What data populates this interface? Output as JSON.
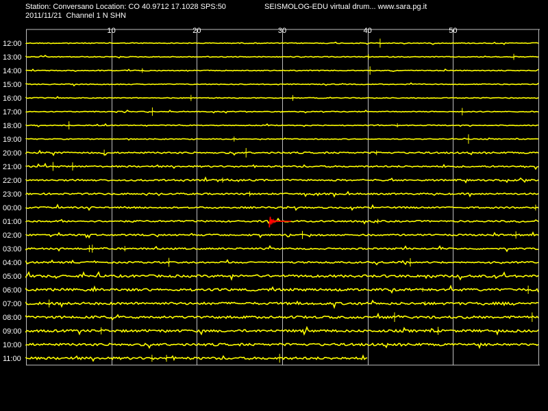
{
  "header": {
    "station_line": "Station: Conversano Location: CO 40.9712 17.1028 SPS:50",
    "software_line": "SEISMOLOG-EDU virtual drum... www.sara.pg.it",
    "date_line": "2011/11/21  Channel 1 N SHN"
  },
  "colors": {
    "background": "#000000",
    "trace": "#ffff00",
    "event": "#ff0000",
    "grid": "#c0c0c0",
    "text": "#ffffff"
  },
  "chart_data": {
    "type": "line",
    "title": "",
    "xlabel": "",
    "ylabel": "",
    "x_ticks": [
      10,
      20,
      30,
      40,
      50
    ],
    "xlim": [
      0,
      60
    ],
    "x_unit": "minute",
    "grid": true,
    "rows": [
      {
        "label": "12:00",
        "end_minute": 60,
        "amplitude": "low"
      },
      {
        "label": "13:00",
        "end_minute": 60,
        "amplitude": "low"
      },
      {
        "label": "14:00",
        "end_minute": 60,
        "amplitude": "low"
      },
      {
        "label": "15:00",
        "end_minute": 60,
        "amplitude": "low"
      },
      {
        "label": "16:00",
        "end_minute": 60,
        "amplitude": "low"
      },
      {
        "label": "17:00",
        "end_minute": 60,
        "amplitude": "low"
      },
      {
        "label": "18:00",
        "end_minute": 60,
        "amplitude": "low"
      },
      {
        "label": "19:00",
        "end_minute": 60,
        "amplitude": "low"
      },
      {
        "label": "20:00",
        "end_minute": 60,
        "amplitude": "medium"
      },
      {
        "label": "21:00",
        "end_minute": 60,
        "amplitude": "medium"
      },
      {
        "label": "22:00",
        "end_minute": 60,
        "amplitude": "medium"
      },
      {
        "label": "23:00",
        "end_minute": 60,
        "amplitude": "medium"
      },
      {
        "label": "00:00",
        "end_minute": 60,
        "amplitude": "medium"
      },
      {
        "label": "01:00",
        "end_minute": 60,
        "amplitude": "medium"
      },
      {
        "label": "02:00",
        "end_minute": 60,
        "amplitude": "medium"
      },
      {
        "label": "03:00",
        "end_minute": 60,
        "amplitude": "medium"
      },
      {
        "label": "04:00",
        "end_minute": 60,
        "amplitude": "medium"
      },
      {
        "label": "05:00",
        "end_minute": 60,
        "amplitude": "high"
      },
      {
        "label": "06:00",
        "end_minute": 60,
        "amplitude": "high"
      },
      {
        "label": "07:00",
        "end_minute": 60,
        "amplitude": "high"
      },
      {
        "label": "08:00",
        "end_minute": 60,
        "amplitude": "high"
      },
      {
        "label": "09:00",
        "end_minute": 60,
        "amplitude": "high"
      },
      {
        "label": "10:00",
        "end_minute": 60,
        "amplitude": "high"
      },
      {
        "label": "11:00",
        "end_minute": 40,
        "amplitude": "high"
      }
    ],
    "event": {
      "row": "01:00",
      "start_minute": 28.5,
      "end_minute": 31
    }
  }
}
